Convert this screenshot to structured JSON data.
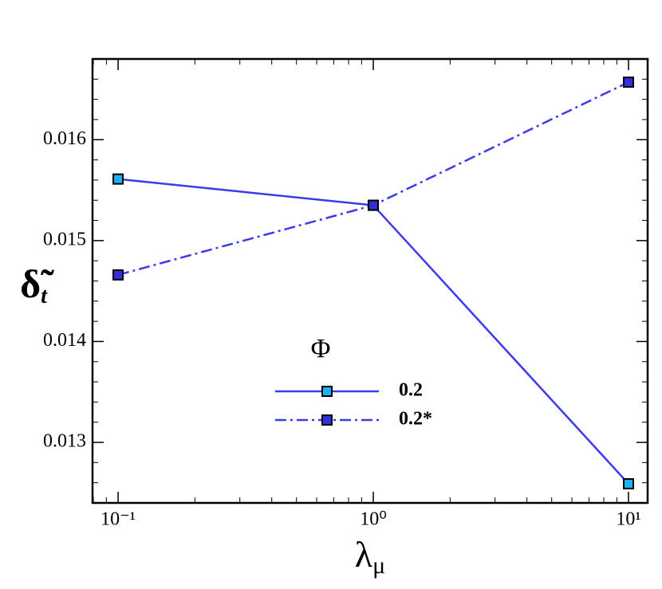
{
  "chart_data": {
    "type": "line",
    "x_label": {
      "text": "λ",
      "subscript": "μ"
    },
    "y_label": {
      "text": "δ̃",
      "subscript": "t"
    },
    "x": [
      0.1,
      1,
      10
    ],
    "series": [
      {
        "name": "0.2",
        "color": "#3a3aee",
        "marker_color": "#20b0f0",
        "line_style": "solid",
        "values": [
          0.01561,
          0.01535,
          0.01259
        ]
      },
      {
        "name": "0.2*",
        "color": "#3a3aee",
        "marker_color": "#3030d8",
        "line_style": "dashdot",
        "values": [
          0.01466,
          0.01535,
          0.01657
        ]
      }
    ],
    "legend_title": "Φ",
    "legend_position": "center",
    "xscale": "log",
    "xlim": [
      0.0794,
      11.885
    ],
    "xticks": [
      {
        "value": 0.1,
        "label": "10⁻¹"
      },
      {
        "value": 1,
        "label": "10⁰"
      },
      {
        "value": 10,
        "label": "10¹"
      }
    ],
    "ylim": [
      0.0124,
      0.0168
    ],
    "yticks": [
      0.013,
      0.014,
      0.015,
      0.016
    ]
  }
}
